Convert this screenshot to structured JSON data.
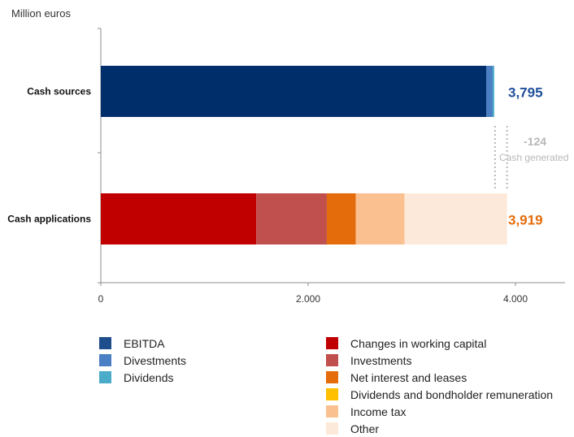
{
  "chart_data": {
    "type": "bar",
    "orientation": "horizontal",
    "stacked": true,
    "unit_label": "Million euros",
    "categories": [
      "Cash sources",
      "Cash applications"
    ],
    "xlim": [
      0,
      4500
    ],
    "xticks": [
      0,
      2000,
      4000
    ],
    "xtick_labels": [
      "0",
      "2.000",
      "4.000"
    ],
    "grid": false,
    "legend_position": "bottom",
    "series": [
      {
        "name": "EBITDA",
        "color": "#002E6B",
        "values": [
          3720,
          0
        ]
      },
      {
        "name": "Divestments",
        "color": "#4A7FC4",
        "values": [
          60,
          0
        ]
      },
      {
        "name": "Dividends",
        "color": "#4AACC9",
        "values": [
          15,
          0
        ]
      },
      {
        "name": "Changes in working capital",
        "color": "#C00000",
        "values": [
          0,
          1500
        ]
      },
      {
        "name": "Investments",
        "color": "#C0504D",
        "values": [
          0,
          680
        ]
      },
      {
        "name": "Net interest and leases",
        "color": "#E46C0A",
        "values": [
          0,
          280
        ]
      },
      {
        "name": "Dividends and bondholder remuneration",
        "color": "#FFC000",
        "values": [
          0,
          0
        ]
      },
      {
        "name": "Income tax",
        "color": "#FAC090",
        "values": [
          0,
          470
        ]
      },
      {
        "name": "Other",
        "color": "#FDE9D9",
        "values": [
          0,
          989
        ]
      }
    ],
    "totals": [
      {
        "label": "3,795",
        "color": "#1F4E9A"
      },
      {
        "label": "3,919",
        "color": "#E46C0A"
      }
    ],
    "annotation": {
      "value": "-124",
      "label": "Cash generated",
      "color": "#B8B8B8"
    }
  },
  "legend": {
    "left": [
      "EBITDA",
      "Divestments",
      "Dividends"
    ],
    "right": [
      "Changes in working capital",
      "Investments",
      "Net interest and leases",
      "Dividends and bondholder remuneration",
      "Income tax",
      "Other"
    ]
  }
}
